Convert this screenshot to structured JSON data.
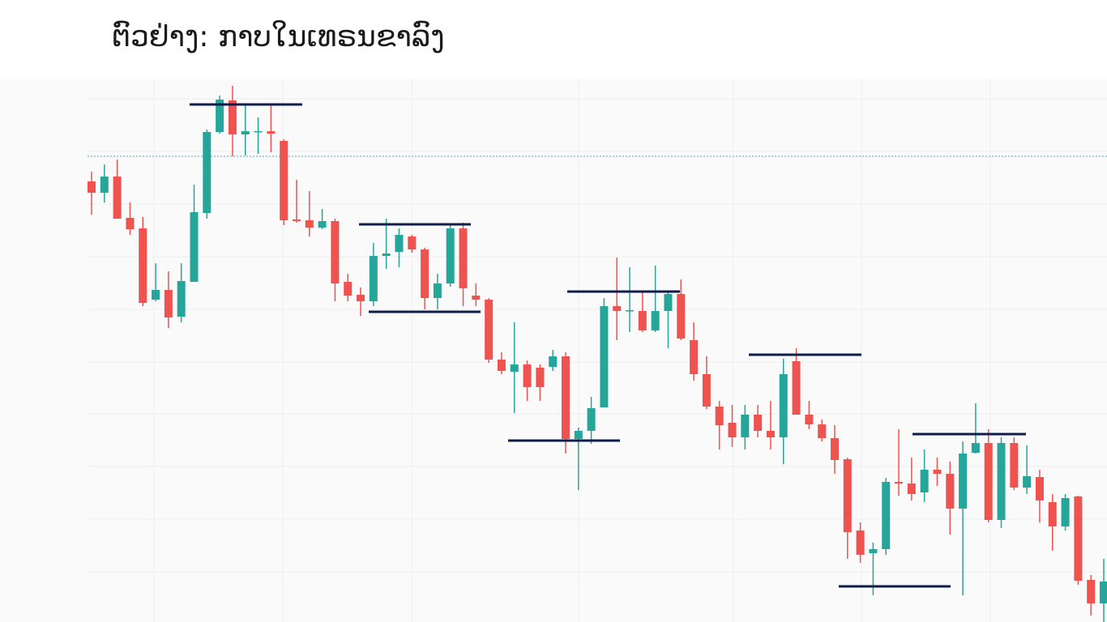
{
  "chart_data": {
    "type": "candlestick",
    "title": "ຕົວຢ່າງ: ກາບໃນເທຣນຂາລົງ",
    "ylim": [
      0,
      670
    ],
    "yticks": [
      62,
      127,
      192,
      257,
      321,
      386,
      451,
      516,
      581,
      646
    ],
    "grid": true,
    "up_color": "#26a69a",
    "down_color": "#ef5350",
    "open": [
      544,
      530,
      550,
      499,
      486,
      398,
      410,
      377,
      420,
      505,
      605,
      644,
      602,
      605,
      606,
      594,
      497,
      496,
      487,
      495,
      420,
      404,
      396,
      452,
      457,
      476,
      460,
      400,
      418,
      486,
      403,
      398,
      324,
      309,
      318,
      314,
      315,
      328,
      226,
      236,
      265,
      390,
      384,
      384,
      360,
      384,
      405,
      348,
      306,
      266,
      246,
      228,
      256,
      236,
      228,
      322,
      256,
      244,
      227,
      201,
      113,
      85,
      90,
      173,
      171,
      160,
      188,
      183,
      140,
      209,
      221,
      126,
      221,
      166,
      179,
      148,
      118,
      155,
      52,
      23
    ],
    "high": [
      556,
      565,
      571,
      518,
      500,
      443,
      433,
      443,
      540,
      608,
      650,
      662,
      638,
      623,
      638,
      596,
      546,
      532,
      510,
      498,
      430,
      413,
      468,
      498,
      486,
      478,
      462,
      430,
      492,
      493,
      418,
      400,
      333,
      370,
      323,
      318,
      336,
      333,
      240,
      278,
      400,
      450,
      438,
      408,
      440,
      408,
      423,
      370,
      328,
      273,
      268,
      268,
      268,
      273,
      325,
      338,
      273,
      250,
      243,
      203,
      123,
      98,
      178,
      238,
      203,
      213,
      203,
      198,
      223,
      270,
      238,
      228,
      228,
      218,
      188,
      158,
      158,
      156,
      58,
      78
    ],
    "low": [
      503,
      518,
      498,
      478,
      390,
      396,
      363,
      370,
      420,
      498,
      603,
      575,
      576,
      578,
      580,
      490,
      493,
      476,
      485,
      396,
      396,
      378,
      390,
      436,
      438,
      456,
      386,
      386,
      414,
      390,
      390,
      320,
      306,
      258,
      273,
      273,
      310,
      208,
      163,
      220,
      265,
      348,
      358,
      358,
      358,
      338,
      348,
      298,
      263,
      213,
      216,
      213,
      228,
      213,
      195,
      256,
      238,
      223,
      183,
      78,
      73,
      33,
      83,
      156,
      150,
      148,
      168,
      108,
      33,
      208,
      123,
      116,
      163,
      158,
      123,
      88,
      113,
      46,
      8,
      0
    ],
    "close": [
      530,
      550,
      498,
      485,
      394,
      410,
      376,
      421,
      506,
      605,
      645,
      602,
      606,
      606,
      603,
      496,
      495,
      487,
      495,
      418,
      403,
      396,
      452,
      455,
      478,
      460,
      400,
      418,
      486,
      412,
      398,
      324,
      310,
      318,
      290,
      290,
      328,
      226,
      236,
      264,
      390,
      384,
      385,
      360,
      384,
      405,
      350,
      306,
      266,
      243,
      228,
      256,
      236,
      228,
      306,
      256,
      244,
      227,
      200,
      111,
      83,
      90,
      173,
      171,
      158,
      188,
      183,
      140,
      208,
      221,
      126,
      221,
      166,
      180,
      150,
      118,
      153,
      51,
      23,
      50
    ]
  }
}
